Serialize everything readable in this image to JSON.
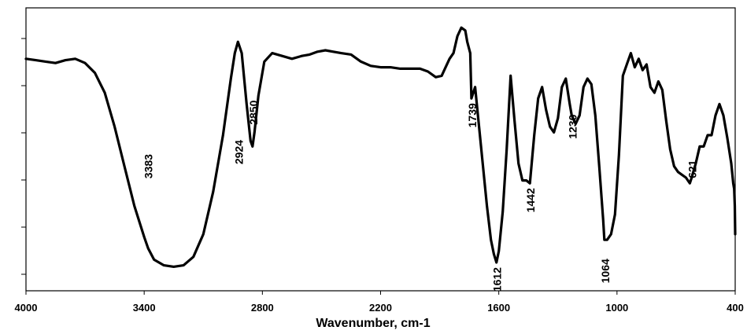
{
  "chart_data": {
    "type": "line",
    "title": "",
    "xlabel": "Wavenumber, cm-1",
    "ylabel": "",
    "x_reversed": true,
    "xlim": [
      4000,
      400
    ],
    "ylim": [
      0,
      100
    ],
    "x_ticks": [
      4000,
      3400,
      2800,
      2200,
      1600,
      1000,
      400
    ],
    "y_tick_count": 6,
    "grid": false,
    "legend": "none",
    "line_color": "#000000",
    "series": [
      {
        "x": [
          4000,
          3950,
          3900,
          3850,
          3800,
          3750,
          3700,
          3650,
          3600,
          3550,
          3500,
          3450,
          3400,
          3380,
          3350,
          3300,
          3250,
          3200,
          3150,
          3100,
          3050,
          3000,
          2960,
          2940,
          2924,
          2905,
          2880,
          2860,
          2850,
          2840,
          2820,
          2790,
          2750,
          2700,
          2650,
          2600,
          2560,
          2520,
          2480,
          2440,
          2400,
          2350,
          2300,
          2250,
          2200,
          2150,
          2100,
          2060,
          2040,
          2000,
          1960,
          1920,
          1890,
          1870,
          1850,
          1830,
          1810,
          1790,
          1770,
          1760,
          1745,
          1739,
          1720,
          1700,
          1680,
          1660,
          1640,
          1625,
          1612,
          1600,
          1580,
          1560,
          1540,
          1520,
          1500,
          1480,
          1460,
          1442,
          1420,
          1400,
          1380,
          1360,
          1340,
          1320,
          1300,
          1280,
          1260,
          1240,
          1230,
          1210,
          1190,
          1170,
          1150,
          1130,
          1110,
          1090,
          1070,
          1064,
          1050,
          1030,
          1010,
          990,
          970,
          950,
          930,
          910,
          890,
          870,
          850,
          830,
          810,
          790,
          770,
          750,
          730,
          710,
          690,
          670,
          650,
          630,
          621,
          600,
          580,
          560,
          540,
          520,
          500,
          480,
          460,
          440,
          420,
          410,
          405,
          402,
          400
        ],
        "y": [
          82,
          81.5,
          81,
          80.5,
          81.5,
          82,
          80.5,
          77,
          70,
          58,
          44,
          30,
          19,
          15,
          11,
          9,
          8.5,
          9,
          12,
          20,
          35,
          55,
          75,
          84,
          88,
          84,
          66,
          53,
          51,
          56,
          69,
          81,
          84,
          83,
          82,
          83,
          83.5,
          84.5,
          85,
          84.5,
          84,
          83.5,
          81,
          79.5,
          79,
          79,
          78.5,
          78.5,
          78.5,
          78.5,
          77.5,
          75.5,
          76,
          79,
          82,
          84,
          90,
          93,
          92,
          88,
          84,
          68,
          72,
          58,
          44,
          30,
          18,
          13,
          10,
          14,
          28,
          50,
          76,
          60,
          45,
          39,
          39,
          38,
          55,
          68,
          72,
          64,
          58,
          56,
          61,
          72,
          75,
          66,
          62,
          59,
          62,
          72,
          75,
          73,
          62,
          44,
          25,
          18,
          18,
          20,
          27,
          48,
          76,
          80,
          84,
          79,
          82,
          78,
          80,
          72,
          70,
          74,
          71,
          60,
          50,
          44,
          42,
          41,
          40,
          38,
          40,
          45,
          51,
          51,
          55,
          55,
          62,
          66,
          62,
          54,
          45,
          38,
          36,
          30,
          20
        ]
      }
    ],
    "annotations": [
      {
        "text": "3383",
        "x": 3383,
        "y": 44,
        "rotation": -90
      },
      {
        "text": "2924",
        "x": 2924,
        "y": 49,
        "rotation": -90
      },
      {
        "text": "2850",
        "x": 2850,
        "y": 63,
        "rotation": -90
      },
      {
        "text": "1739",
        "x": 1739,
        "y": 62,
        "rotation": -90
      },
      {
        "text": "1612",
        "x": 1612,
        "y": 4,
        "rotation": -90
      },
      {
        "text": "1442",
        "x": 1442,
        "y": 32,
        "rotation": -90
      },
      {
        "text": "1230",
        "x": 1230,
        "y": 58,
        "rotation": -90
      },
      {
        "text": "1064",
        "x": 1064,
        "y": 7,
        "rotation": -90
      },
      {
        "text": "621",
        "x": 621,
        "y": 43,
        "rotation": -90
      }
    ]
  }
}
